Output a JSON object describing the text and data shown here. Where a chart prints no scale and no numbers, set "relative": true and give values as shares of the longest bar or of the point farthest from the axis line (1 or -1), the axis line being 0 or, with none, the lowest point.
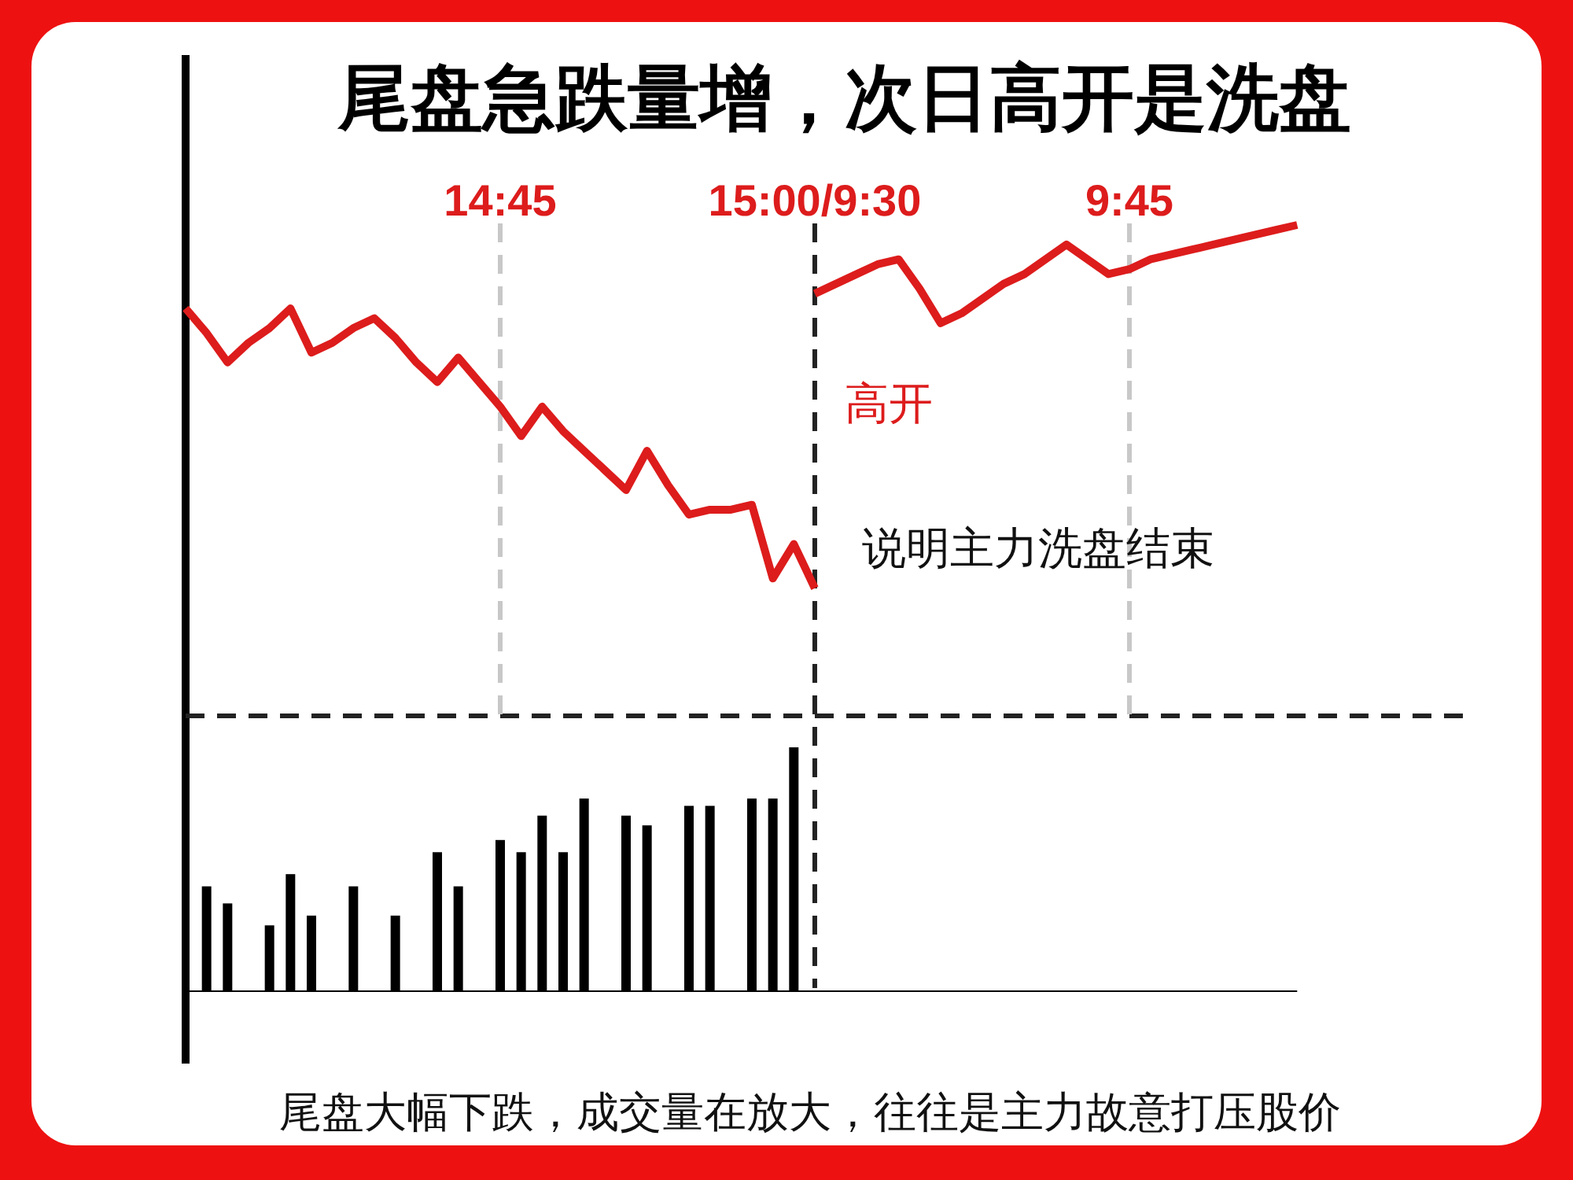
{
  "chart_data": [
    {
      "type": "line",
      "relative": true,
      "title": "尾盘急跌量增，次日高开是洗盘",
      "line_style": "solid",
      "marker": "none",
      "categories": [
        null,
        null,
        null,
        null,
        null,
        null,
        null,
        null,
        null,
        null,
        null,
        null,
        null,
        null,
        null,
        "14:45",
        null,
        null,
        null,
        null,
        null,
        null,
        null,
        null,
        null,
        null,
        null,
        null,
        null,
        null,
        "15:00/9:30",
        null,
        null,
        null,
        null,
        null,
        null,
        null,
        null,
        null,
        null,
        null,
        null,
        null,
        null,
        "9:45",
        null,
        null,
        null,
        null,
        null,
        null,
        null,
        null
      ],
      "series": [
        {
          "color": "#dd1c1c",
          "values": [
            0.83,
            0.78,
            0.72,
            0.76,
            0.79,
            0.83,
            0.74,
            0.76,
            0.79,
            0.81,
            0.77,
            0.72,
            0.68,
            0.73,
            0.68,
            0.63,
            0.57,
            0.63,
            0.58,
            0.54,
            0.5,
            0.46,
            0.54,
            0.47,
            0.41,
            0.42,
            0.42,
            0.43,
            0.28,
            0.35,
            0.26,
            null,
            null,
            null,
            null,
            null,
            null,
            null,
            null,
            null,
            null,
            null,
            null,
            null,
            null,
            null,
            null,
            null,
            null,
            null,
            null,
            null,
            null,
            null
          ]
        },
        {
          "color": "#dd1c1c",
          "values": [
            null,
            null,
            null,
            null,
            null,
            null,
            null,
            null,
            null,
            null,
            null,
            null,
            null,
            null,
            null,
            null,
            null,
            null,
            null,
            null,
            null,
            null,
            null,
            null,
            null,
            null,
            null,
            null,
            null,
            null,
            0.86,
            0.88,
            0.9,
            0.92,
            0.93,
            0.87,
            0.8,
            0.82,
            0.85,
            0.88,
            0.9,
            0.93,
            0.96,
            0.93,
            0.9,
            0.91,
            0.93,
            0.94,
            0.95,
            0.96,
            0.97,
            0.98,
            0.99,
            1
          ]
        }
      ],
      "ref_lines": [
        {
          "axis": "x",
          "value": "14:45",
          "color": "#c8c8c8",
          "line_style": "dashed"
        },
        {
          "axis": "x",
          "value": "15:00/9:30",
          "color": "#222222",
          "line_style": "dashed"
        },
        {
          "axis": "x",
          "value": "9:45",
          "color": "#c8c8c8",
          "line_style": "dashed"
        }
      ],
      "annotations": [
        "高开",
        "说明主力洗盘结束"
      ]
    },
    {
      "type": "bar",
      "relative": true,
      "color": "#000000",
      "categories": [
        null,
        null,
        null,
        null,
        null,
        null,
        null,
        null,
        null,
        null,
        null,
        null,
        null,
        null,
        null,
        null,
        null,
        null,
        null,
        null,
        null,
        null,
        null,
        null,
        null,
        null,
        null,
        null,
        null,
        null,
        null,
        null,
        null,
        null,
        null,
        null,
        null,
        null,
        null,
        null,
        null,
        null,
        null,
        null,
        null,
        null,
        null,
        null,
        null,
        null,
        null,
        null,
        null,
        null
      ],
      "values": [
        null,
        0.43,
        0.36,
        null,
        0.27,
        0.48,
        0.31,
        null,
        0.43,
        null,
        0.31,
        null,
        0.57,
        0.43,
        null,
        0.62,
        0.57,
        0.72,
        0.57,
        0.79,
        null,
        0.72,
        0.68,
        null,
        0.76,
        0.76,
        null,
        0.79,
        0.79,
        1,
        null,
        null,
        null,
        null,
        null,
        null,
        null,
        null,
        null,
        null,
        null,
        null,
        null,
        null,
        null,
        null,
        null,
        null,
        null,
        null,
        null,
        null,
        null,
        null
      ],
      "annotations": [
        "尾盘大幅下跌，成交量在放大，往往是主力故意打压股价"
      ]
    }
  ]
}
